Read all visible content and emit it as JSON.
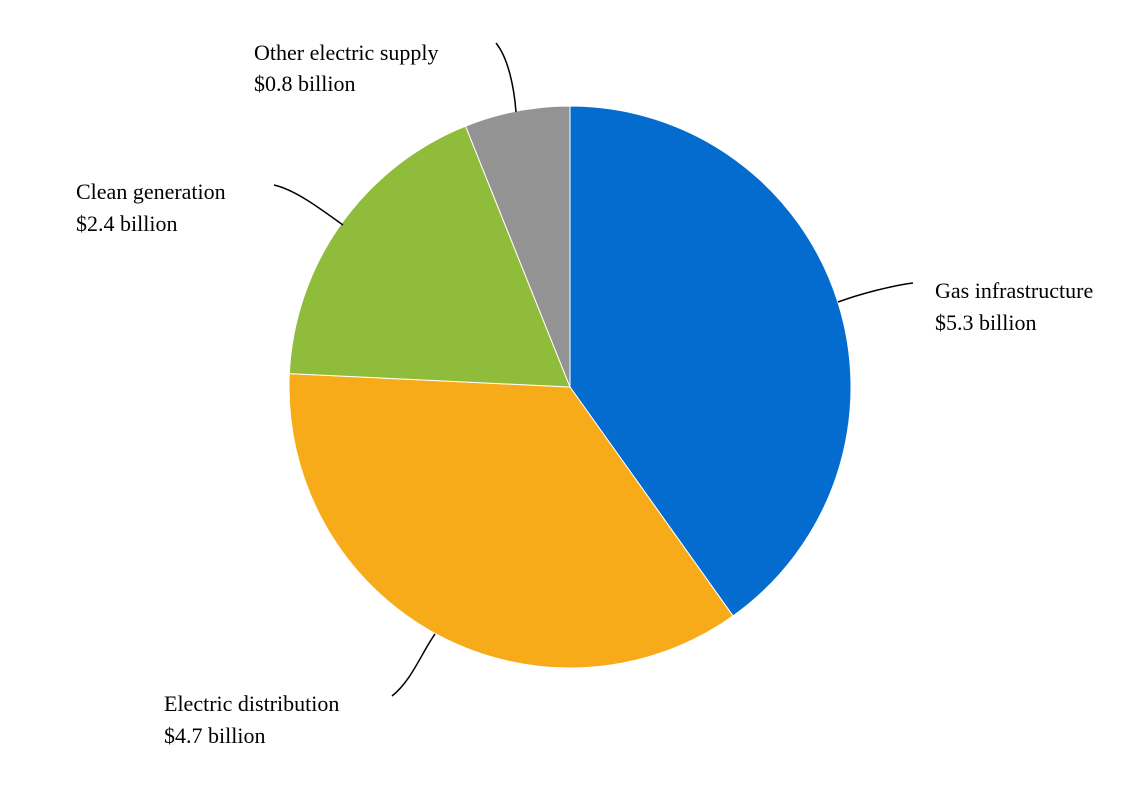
{
  "chart_data": {
    "type": "pie",
    "unit": "$ billion",
    "start_angle_deg": 0,
    "direction": "clockwise",
    "slices": [
      {
        "name": "Gas infrastructure",
        "value": 5.3,
        "value_label": "$5.3 billion",
        "color": "#056ccf"
      },
      {
        "name": "Electric distribution",
        "value": 4.7,
        "value_label": "$4.7 billion",
        "color": "#f8ab19"
      },
      {
        "name": "Clean generation",
        "value": 2.4,
        "value_label": "$2.4 billion",
        "color": "#8fbc3a"
      },
      {
        "name": "Other electric supply",
        "value": 0.8,
        "value_label": "$0.8 billion",
        "color": "#939393"
      }
    ]
  }
}
